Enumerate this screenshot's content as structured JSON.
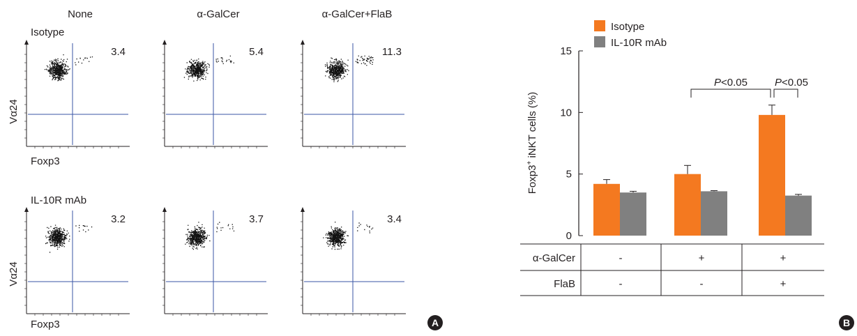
{
  "flow": {
    "columns": [
      "None",
      "α-GalCer",
      "α-GalCer+FlaB"
    ],
    "rows": [
      {
        "label": "Isotype",
        "percents": [
          "3.4",
          "5.4",
          "11.3"
        ]
      },
      {
        "label": "IL-10R mAb",
        "percents": [
          "3.2",
          "3.7",
          "3.4"
        ]
      }
    ],
    "y_axis_label": "Vα24",
    "x_axis_label": "Foxp3",
    "panel_label": "A"
  },
  "bar_panel": {
    "panel_label": "B",
    "significance": [
      "P<0.05",
      "P<0.05"
    ],
    "treatment_rows": [
      {
        "label": "α-GalCer",
        "values": [
          "-",
          "+",
          "+"
        ]
      },
      {
        "label": "FlaB",
        "values": [
          "-",
          "-",
          "+"
        ]
      }
    ]
  },
  "colors": {
    "isotype": "#f47920",
    "il10r": "#808080",
    "gate_line": "#3a55a4",
    "badge": "#231f20"
  },
  "chart_data": {
    "type": "bar",
    "ylabel": "Foxp3+ iNKT cells (%)",
    "ylim": [
      0,
      15
    ],
    "yticks": [
      0,
      5,
      10,
      15
    ],
    "categories": [
      "-/-",
      "+/-",
      "+/+"
    ],
    "series": [
      {
        "name": "Isotype",
        "values": [
          4.2,
          5.0,
          9.8
        ],
        "errors": [
          0.35,
          0.7,
          0.8
        ]
      },
      {
        "name": "IL-10R mAb",
        "values": [
          3.5,
          3.6,
          3.25
        ],
        "errors": [
          0.1,
          0.05,
          0.1
        ]
      }
    ],
    "legend": "top-left"
  }
}
